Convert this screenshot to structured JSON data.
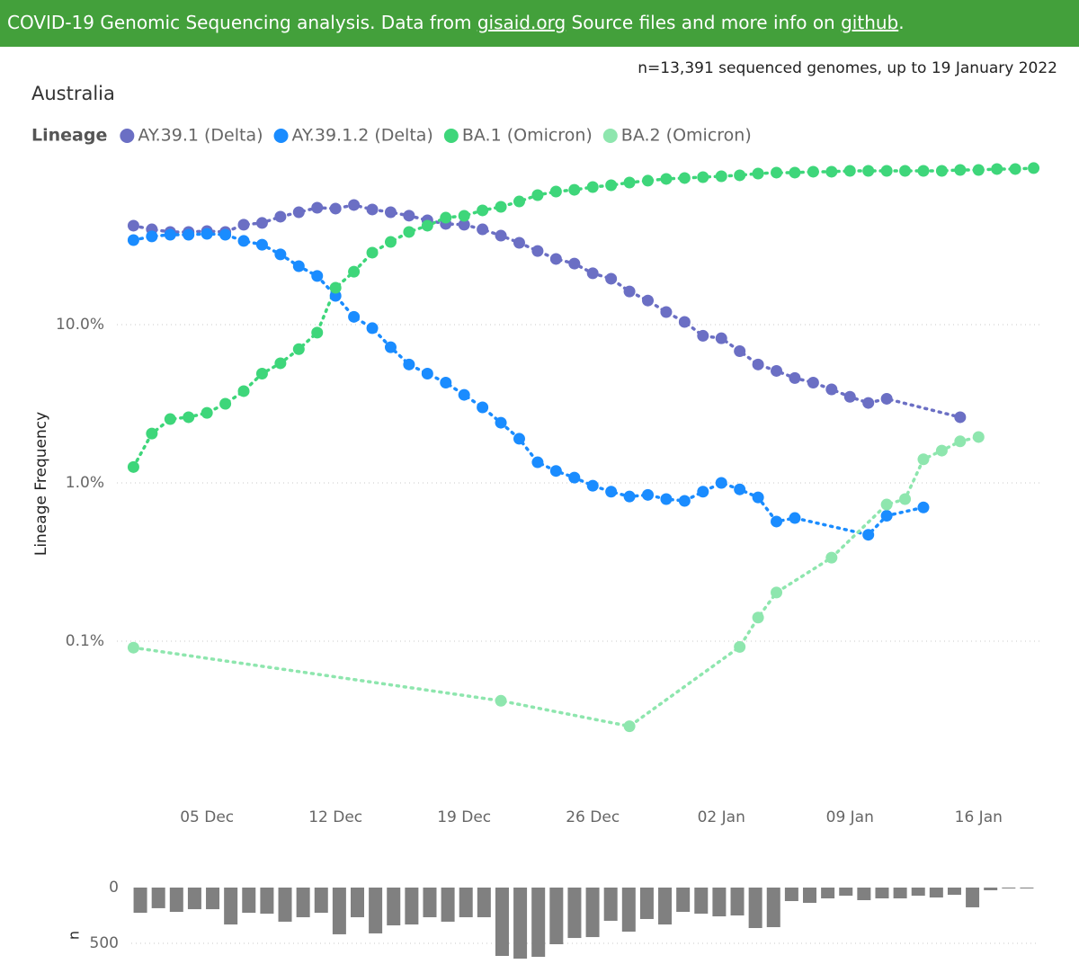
{
  "header": {
    "text_1": "COVID-19 Genomic Sequencing analysis. Data from ",
    "link_1": "gisaid.org",
    "text_2": " Source files and more info on ",
    "link_2": "github",
    "text_3": "."
  },
  "chart_data": [
    {
      "type": "line",
      "title": "Australia",
      "subtitle": "n=13,391 sequenced genomes, up to 19 January 2022",
      "legend_title": "Lineage",
      "ylabel": "Lineage Frequency",
      "log_y": true,
      "grid": true,
      "xlim": [
        "30 Nov",
        "20 Jan"
      ],
      "xticks": [
        "05 Dec",
        "12 Dec",
        "19 Dec",
        "26 Dec",
        "02 Jan",
        "09 Jan",
        "16 Jan"
      ],
      "ylim": [
        0.015,
        100
      ],
      "yticks": [
        {
          "value": 0.1,
          "label": "0.1%"
        },
        {
          "value": 1,
          "label": "1.0%"
        },
        {
          "value": 10,
          "label": "10.0%"
        }
      ],
      "series": [
        {
          "name": "AY.39.1 (Delta)",
          "color": "#6b6fc4",
          "x": [
            "01 Dec",
            "02 Dec",
            "03 Dec",
            "04 Dec",
            "05 Dec",
            "06 Dec",
            "07 Dec",
            "08 Dec",
            "09 Dec",
            "10 Dec",
            "11 Dec",
            "12 Dec",
            "13 Dec",
            "14 Dec",
            "15 Dec",
            "16 Dec",
            "17 Dec",
            "18 Dec",
            "19 Dec",
            "20 Dec",
            "21 Dec",
            "22 Dec",
            "23 Dec",
            "24 Dec",
            "25 Dec",
            "26 Dec",
            "27 Dec",
            "28 Dec",
            "29 Dec",
            "30 Dec",
            "31 Dec",
            "01 Jan",
            "02 Jan",
            "03 Jan",
            "04 Jan",
            "05 Jan",
            "06 Jan",
            "07 Jan",
            "08 Jan",
            "09 Jan",
            "10 Jan",
            "11 Jan",
            "15 Jan"
          ],
          "values": [
            42.2,
            40.0,
            38.5,
            38.5,
            39.0,
            38.5,
            42.8,
            43.9,
            48.1,
            51.3,
            54.8,
            54.1,
            57.0,
            53.4,
            51.3,
            48.8,
            45.6,
            43.3,
            42.8,
            40.0,
            36.5,
            32.9,
            29.2,
            26.0,
            24.3,
            21.1,
            19.5,
            16.2,
            14.2,
            12.0,
            10.4,
            8.5,
            8.2,
            6.8,
            5.6,
            5.1,
            4.6,
            4.3,
            3.9,
            3.5,
            3.2,
            3.4,
            2.6
          ]
        },
        {
          "name": "AY.39.1.2 (Delta)",
          "color": "#1a8cff",
          "x": [
            "01 Dec",
            "02 Dec",
            "03 Dec",
            "04 Dec",
            "05 Dec",
            "06 Dec",
            "07 Dec",
            "08 Dec",
            "09 Dec",
            "10 Dec",
            "11 Dec",
            "12 Dec",
            "13 Dec",
            "14 Dec",
            "15 Dec",
            "16 Dec",
            "17 Dec",
            "18 Dec",
            "19 Dec",
            "20 Dec",
            "21 Dec",
            "22 Dec",
            "23 Dec",
            "24 Dec",
            "25 Dec",
            "26 Dec",
            "27 Dec",
            "28 Dec",
            "29 Dec",
            "30 Dec",
            "31 Dec",
            "01 Jan",
            "02 Jan",
            "03 Jan",
            "04 Jan",
            "05 Jan",
            "06 Jan",
            "10 Jan",
            "11 Jan",
            "13 Jan"
          ],
          "values": [
            34.2,
            36.1,
            37.0,
            37.0,
            37.5,
            37.0,
            33.8,
            32.0,
            27.8,
            23.4,
            20.3,
            15.2,
            11.2,
            9.5,
            7.2,
            5.6,
            4.9,
            4.3,
            3.6,
            3.0,
            2.4,
            1.9,
            1.35,
            1.19,
            1.08,
            0.96,
            0.88,
            0.82,
            0.84,
            0.79,
            0.77,
            0.88,
            1.0,
            0.91,
            0.81,
            0.57,
            0.6,
            0.47,
            0.62,
            0.7
          ]
        },
        {
          "name": "BA.1 (Omicron)",
          "color": "#3ed67a",
          "x": [
            "01 Dec",
            "02 Dec",
            "03 Dec",
            "04 Dec",
            "05 Dec",
            "06 Dec",
            "07 Dec",
            "08 Dec",
            "09 Dec",
            "10 Dec",
            "11 Dec",
            "12 Dec",
            "13 Dec",
            "14 Dec",
            "15 Dec",
            "16 Dec",
            "17 Dec",
            "18 Dec",
            "19 Dec",
            "20 Dec",
            "21 Dec",
            "22 Dec",
            "23 Dec",
            "24 Dec",
            "25 Dec",
            "26 Dec",
            "27 Dec",
            "28 Dec",
            "29 Dec",
            "30 Dec",
            "31 Dec",
            "01 Jan",
            "02 Jan",
            "03 Jan",
            "04 Jan",
            "05 Jan",
            "06 Jan",
            "07 Jan",
            "08 Jan",
            "09 Jan",
            "10 Jan",
            "11 Jan",
            "12 Jan",
            "13 Jan",
            "14 Jan",
            "15 Jan",
            "16 Jan",
            "17 Jan",
            "18 Jan",
            "19 Jan"
          ],
          "values": [
            1.26,
            2.05,
            2.53,
            2.6,
            2.77,
            3.16,
            3.8,
            4.9,
            5.7,
            7.0,
            8.9,
            17.1,
            21.6,
            28.5,
            33.3,
            38.5,
            42.2,
            47.4,
            48.7,
            52.7,
            55.5,
            60.0,
            65.8,
            69.3,
            71.1,
            74.0,
            76.0,
            79.0,
            81.2,
            83.3,
            84.4,
            85.5,
            86.6,
            87.8,
            90.1,
            91.3,
            91.3,
            92.5,
            92.5,
            93.7,
            93.7,
            93.7,
            93.7,
            93.7,
            93.7,
            94.9,
            94.9,
            96.2,
            96.2,
            97.5
          ]
        },
        {
          "name": "BA.2 (Omicron)",
          "color": "#8ee6ae",
          "x": [
            "01 Dec",
            "21 Dec",
            "28 Dec",
            "03 Jan",
            "04 Jan",
            "05 Jan",
            "08 Jan",
            "11 Jan",
            "12 Jan",
            "13 Jan",
            "14 Jan",
            "15 Jan",
            "16 Jan"
          ],
          "values": [
            0.091,
            0.042,
            0.029,
            0.092,
            0.141,
            0.203,
            0.337,
            0.73,
            0.79,
            1.41,
            1.6,
            1.83,
            1.95
          ]
        }
      ]
    },
    {
      "type": "bar",
      "ylabel": "n",
      "color": "#808080",
      "y_reversed": true,
      "grid": true,
      "ylim": [
        0,
        650
      ],
      "yticks": [
        0,
        500
      ],
      "values": [
        226,
        185,
        218,
        194,
        194,
        331,
        226,
        234,
        306,
        266,
        226,
        419,
        266,
        411,
        339,
        331,
        266,
        306,
        266,
        266,
        613,
        637,
        621,
        508,
        452,
        444,
        298,
        395,
        282,
        331,
        218,
        234,
        258,
        250,
        363,
        355,
        121,
        137,
        97,
        73,
        113,
        97,
        97,
        73,
        89,
        65,
        177,
        24,
        8,
        8
      ]
    }
  ]
}
